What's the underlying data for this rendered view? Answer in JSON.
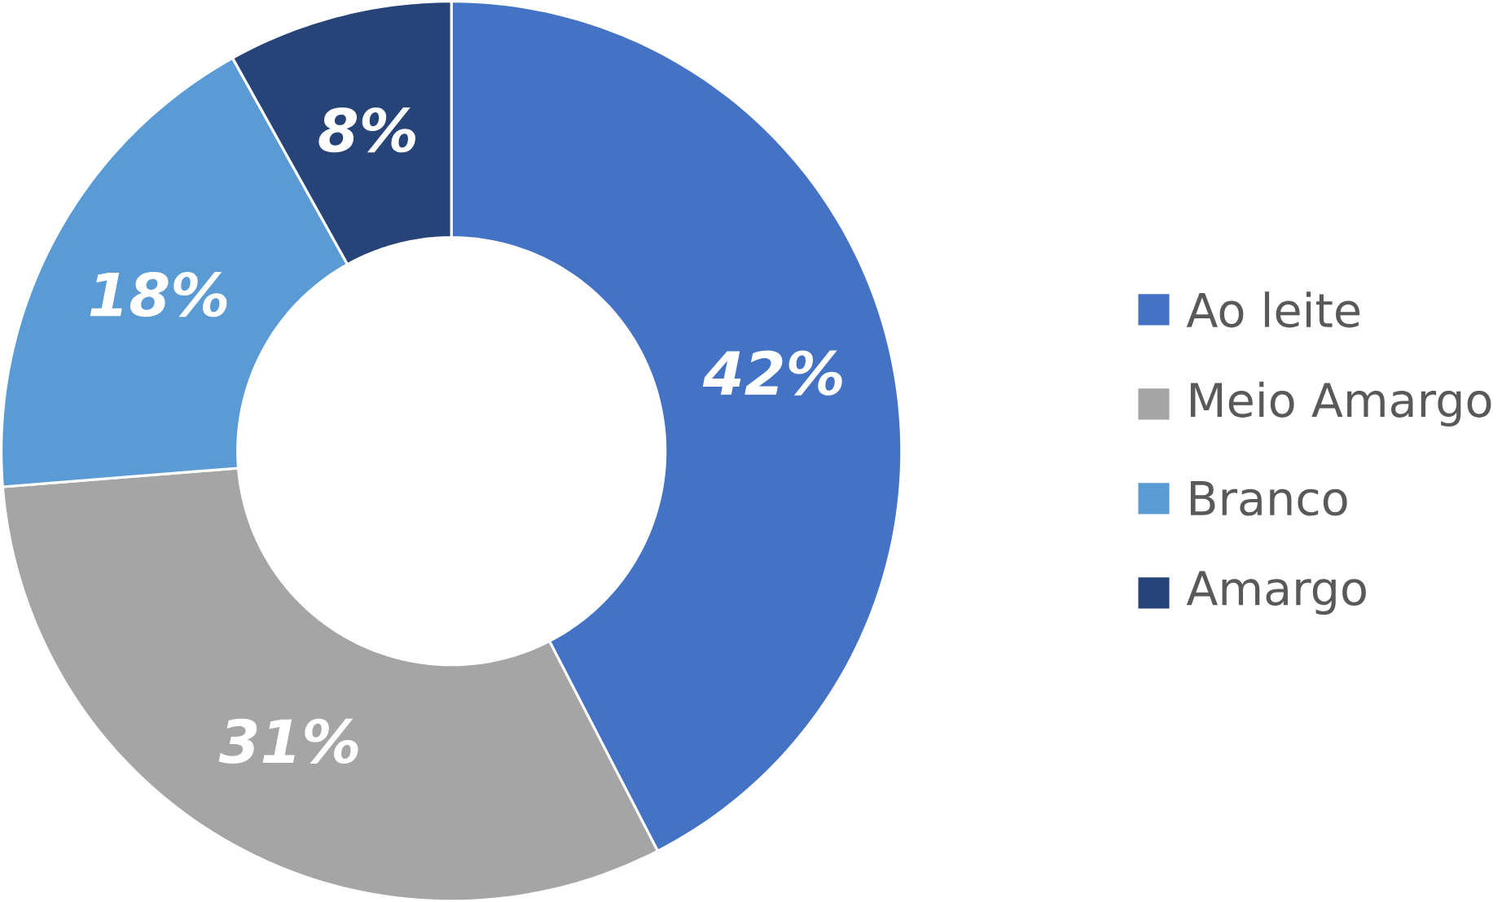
{
  "chart_data": {
    "type": "donut",
    "categories": [
      "Ao leite",
      "Meio Amargo",
      "Branco",
      "Amargo"
    ],
    "values": [
      42,
      31,
      18,
      8
    ],
    "value_labels": [
      "42%",
      "31%",
      "18%",
      "8%"
    ],
    "colors": [
      "#4472c4",
      "#a5a5a5",
      "#5b9bd5",
      "#264478"
    ],
    "legend": "right"
  }
}
